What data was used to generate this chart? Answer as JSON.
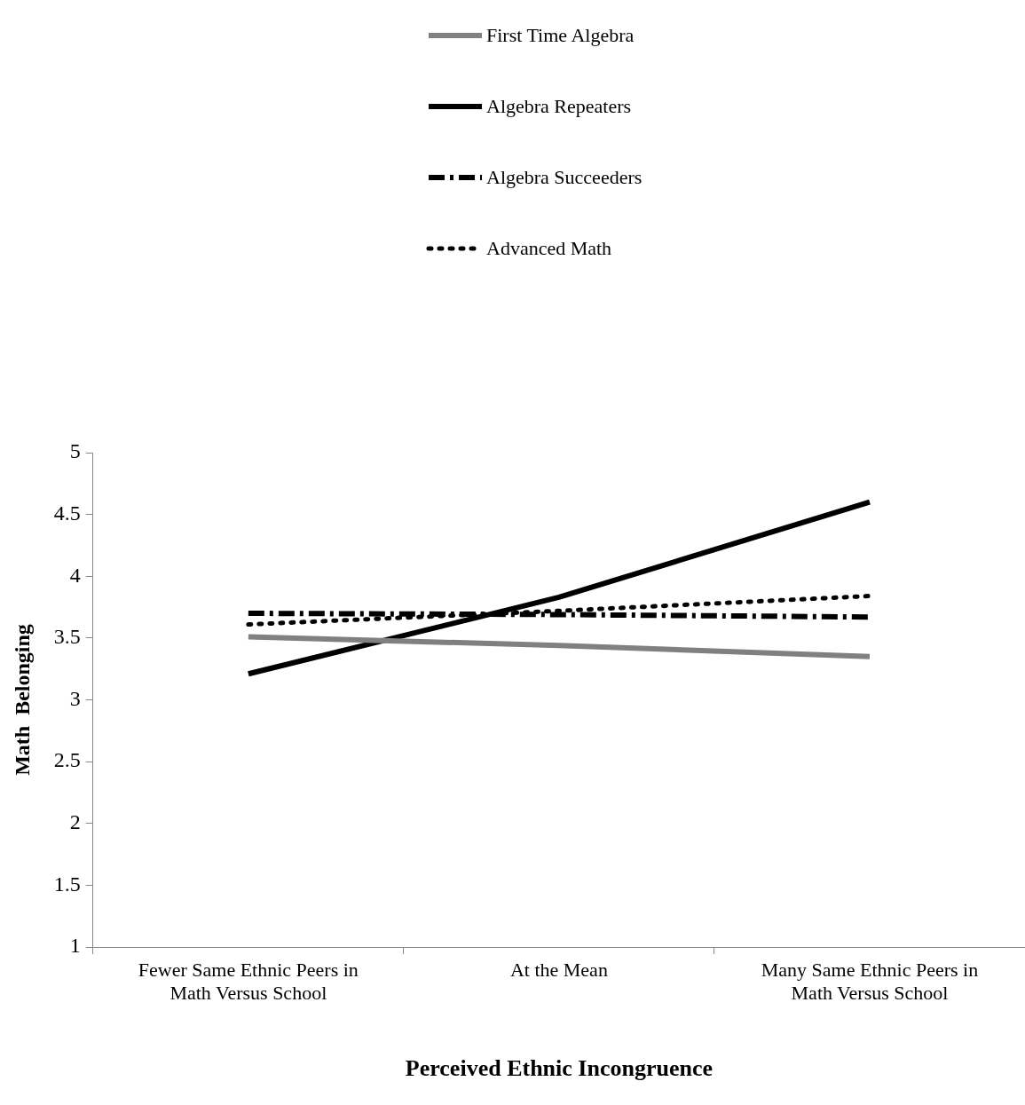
{
  "chart_data": {
    "type": "line",
    "xlabel": "Perceived Ethnic Incongruence",
    "ylabel": "Math  Belonging",
    "categories": [
      "Fewer Same Ethnic Peers in Math Versus School",
      "At the Mean",
      "Many Same Ethnic Peers in Math Versus School"
    ],
    "series": [
      {
        "name": "First Time Algebra",
        "color": "#808080",
        "line_style": "solid",
        "values": [
          3.51,
          3.44,
          3.35
        ]
      },
      {
        "name": "Algebra Repeaters",
        "color": "#000000",
        "line_style": "solid",
        "values": [
          3.21,
          3.83,
          4.6
        ]
      },
      {
        "name": "Algebra Succeeders",
        "color": "#000000",
        "line_style": "dashed",
        "values": [
          3.7,
          3.69,
          3.67
        ]
      },
      {
        "name": "Advanced Math",
        "color": "#000000",
        "line_style": "dotted",
        "values": [
          3.61,
          3.72,
          3.84
        ]
      }
    ],
    "ylim": [
      1,
      5
    ],
    "yticks": [
      1,
      1.5,
      2,
      2.5,
      3,
      3.5,
      4,
      4.5,
      5
    ],
    "grid": false,
    "legend": "top",
    "marker": "none"
  }
}
